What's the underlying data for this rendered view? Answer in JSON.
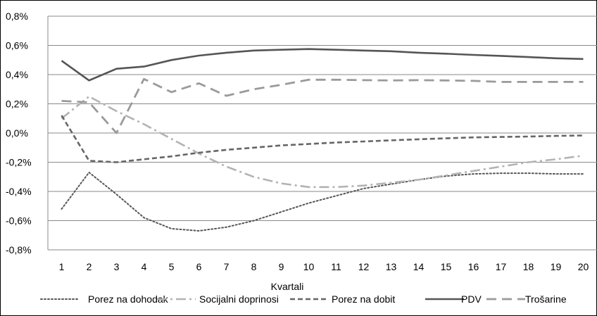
{
  "chart_data": {
    "type": "line",
    "xlabel": "Kvartali",
    "ylabel": "",
    "x": [
      1,
      2,
      3,
      4,
      5,
      6,
      7,
      8,
      9,
      10,
      11,
      12,
      13,
      14,
      15,
      16,
      17,
      18,
      19,
      20
    ],
    "ylim": [
      -0.8,
      0.8
    ],
    "yticks": [
      "0,8%",
      "0,6%",
      "0,4%",
      "0,2%",
      "0,0%",
      "-0,2%",
      "-0,4%",
      "-0,6%",
      "-0,8%"
    ],
    "ytick_values": [
      0.8,
      0.6,
      0.4,
      0.2,
      0.0,
      -0.2,
      -0.4,
      -0.6,
      -0.8
    ],
    "grid": true,
    "legend_position": "bottom",
    "series": [
      {
        "name": "Porez na dohodak",
        "color": "#555555",
        "dash": "dotted",
        "values": [
          -0.52,
          -0.27,
          -0.42,
          -0.58,
          -0.655,
          -0.67,
          -0.645,
          -0.6,
          -0.54,
          -0.48,
          -0.43,
          -0.38,
          -0.35,
          -0.32,
          -0.295,
          -0.28,
          -0.275,
          -0.275,
          -0.28,
          -0.28
        ]
      },
      {
        "name": "Socijalni doprinosi",
        "color": "#b3b3b3",
        "dash": "dashdot",
        "values": [
          0.1,
          0.25,
          0.15,
          0.06,
          -0.04,
          -0.14,
          -0.23,
          -0.3,
          -0.345,
          -0.37,
          -0.37,
          -0.36,
          -0.34,
          -0.32,
          -0.29,
          -0.26,
          -0.23,
          -0.2,
          -0.18,
          -0.155
        ]
      },
      {
        "name": "Porez na dobit",
        "color": "#666666",
        "dash": "dashed",
        "values": [
          0.12,
          -0.19,
          -0.2,
          -0.18,
          -0.16,
          -0.135,
          -0.115,
          -0.1,
          -0.085,
          -0.075,
          -0.065,
          -0.058,
          -0.05,
          -0.043,
          -0.036,
          -0.03,
          -0.027,
          -0.024,
          -0.02,
          -0.017
        ]
      },
      {
        "name": "PDV",
        "color": "#555555",
        "dash": "solid",
        "values": [
          0.495,
          0.36,
          0.44,
          0.455,
          0.5,
          0.53,
          0.55,
          0.565,
          0.57,
          0.575,
          0.57,
          0.565,
          0.56,
          0.55,
          0.543,
          0.535,
          0.528,
          0.52,
          0.512,
          0.507
        ]
      },
      {
        "name": "Trošarine",
        "color": "#9a9a9a",
        "dash": "longdash",
        "values": [
          0.22,
          0.21,
          0.0,
          0.37,
          0.28,
          0.34,
          0.255,
          0.3,
          0.33,
          0.365,
          0.365,
          0.362,
          0.36,
          0.362,
          0.36,
          0.357,
          0.35,
          0.35,
          0.35,
          0.35
        ]
      }
    ]
  }
}
